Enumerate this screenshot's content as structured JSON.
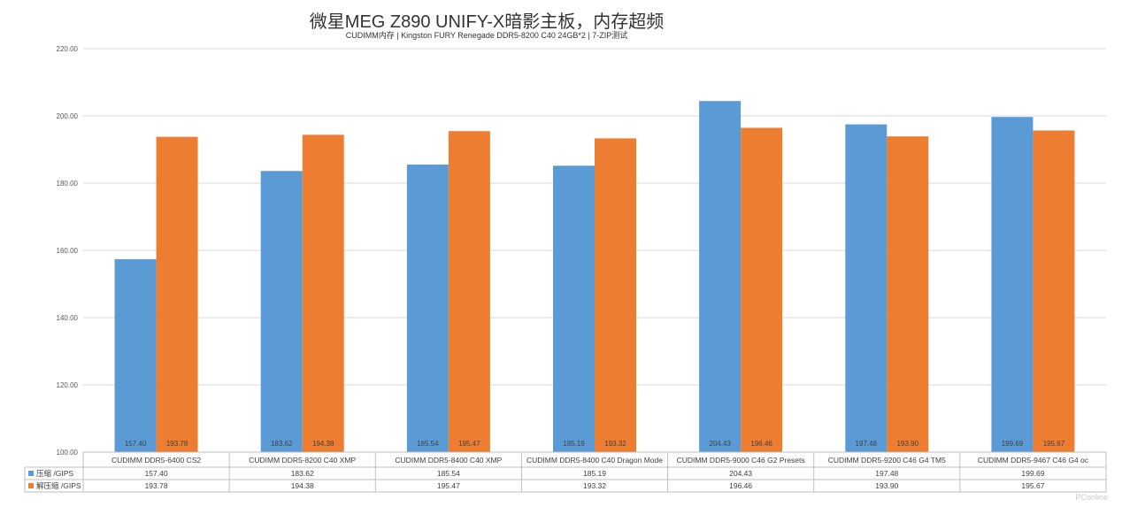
{
  "chart_data": {
    "type": "bar",
    "title": "微星MEG Z890 UNIFY-X暗影主板，内存超频",
    "subtitle": "CUDIMM内存 | Kingston FURY Renegade DDR5-8200 C40 24GB*2 | 7-ZIP测试",
    "categories": [
      "CUDIMM DDR5-6400 CS2",
      "CUDIMM DDR5-8200 C40 XMP",
      "CUDIMM DDR5-8400 C40 XMP",
      "CUDIMM DDR5-8400 C40 Dragon Mode",
      "CUDIMM DDR5-9000 C46 G2 Presets",
      "CUDIMM DDR5-9200 C46 G4 TM5",
      "CUDIMM DDR5-9467 C46 G4 oc"
    ],
    "series": [
      {
        "name": "压缩 /GIPS",
        "color": "#5B9BD5",
        "values": [
          157.4,
          183.62,
          185.54,
          185.19,
          204.43,
          197.48,
          199.69
        ],
        "labels": [
          "157.40",
          "183.62",
          "185.54",
          "185.19",
          "204.43",
          "197.48",
          "199.69"
        ]
      },
      {
        "name": "解压缩 /GIPS",
        "color": "#ED7D31",
        "values": [
          193.78,
          194.38,
          195.47,
          193.32,
          196.46,
          193.9,
          195.67
        ],
        "labels": [
          "193.78",
          "194.38",
          "195.47",
          "193.32",
          "196.46",
          "193.90",
          "195.67"
        ]
      }
    ],
    "ylim": [
      100,
      220
    ],
    "yticks": [
      "100.00",
      "120.00",
      "140.00",
      "160.00",
      "180.00",
      "200.00",
      "220.00"
    ],
    "grid": true,
    "legend": "data-table-below"
  },
  "watermark": "PConline"
}
